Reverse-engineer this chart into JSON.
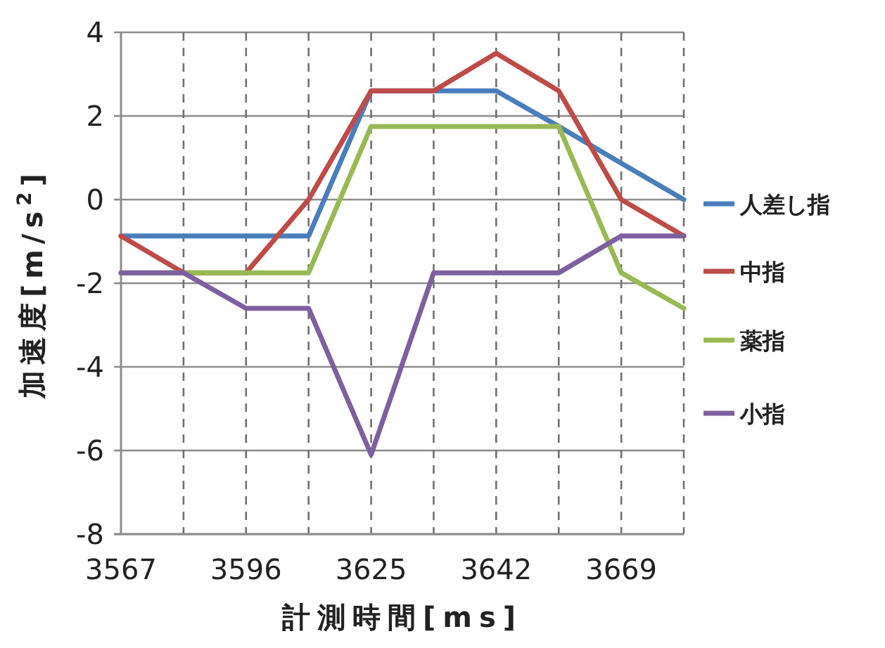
{
  "chart_data": {
    "type": "line",
    "xlabel": "計測時間[ms]",
    "ylabel": "加速度[m/s$^{2}$]",
    "categories": [
      "3567",
      null,
      "3596",
      null,
      "3625",
      null,
      "3642",
      null,
      "3669",
      null
    ],
    "ylim": [
      -8,
      4
    ],
    "yticks": [
      -8,
      -6,
      -4,
      -2,
      0,
      2,
      4
    ],
    "grid": true,
    "legend": "right",
    "marker": "none",
    "line_style": "solid",
    "series": [
      {
        "name": "人差し指",
        "color": "#4a7ebb",
        "values": [
          -0.87,
          -0.87,
          -0.87,
          -0.87,
          2.6,
          2.6,
          2.6,
          1.75,
          0.87,
          0
        ]
      },
      {
        "name": "中指",
        "color": "#be4b48",
        "values": [
          -0.87,
          -1.75,
          -1.75,
          0,
          2.6,
          2.6,
          3.5,
          2.6,
          0,
          -0.87
        ]
      },
      {
        "name": "薬指",
        "color": "#98b954",
        "values": [
          -1.75,
          -1.75,
          -1.75,
          -1.75,
          1.75,
          1.75,
          1.75,
          1.75,
          -1.75,
          -2.6
        ]
      },
      {
        "name": "小指",
        "color": "#7d60a0",
        "values": [
          -1.75,
          -1.75,
          -2.6,
          -2.6,
          -6.1,
          -1.75,
          -1.75,
          -1.75,
          -0.87,
          -0.87
        ]
      }
    ]
  }
}
